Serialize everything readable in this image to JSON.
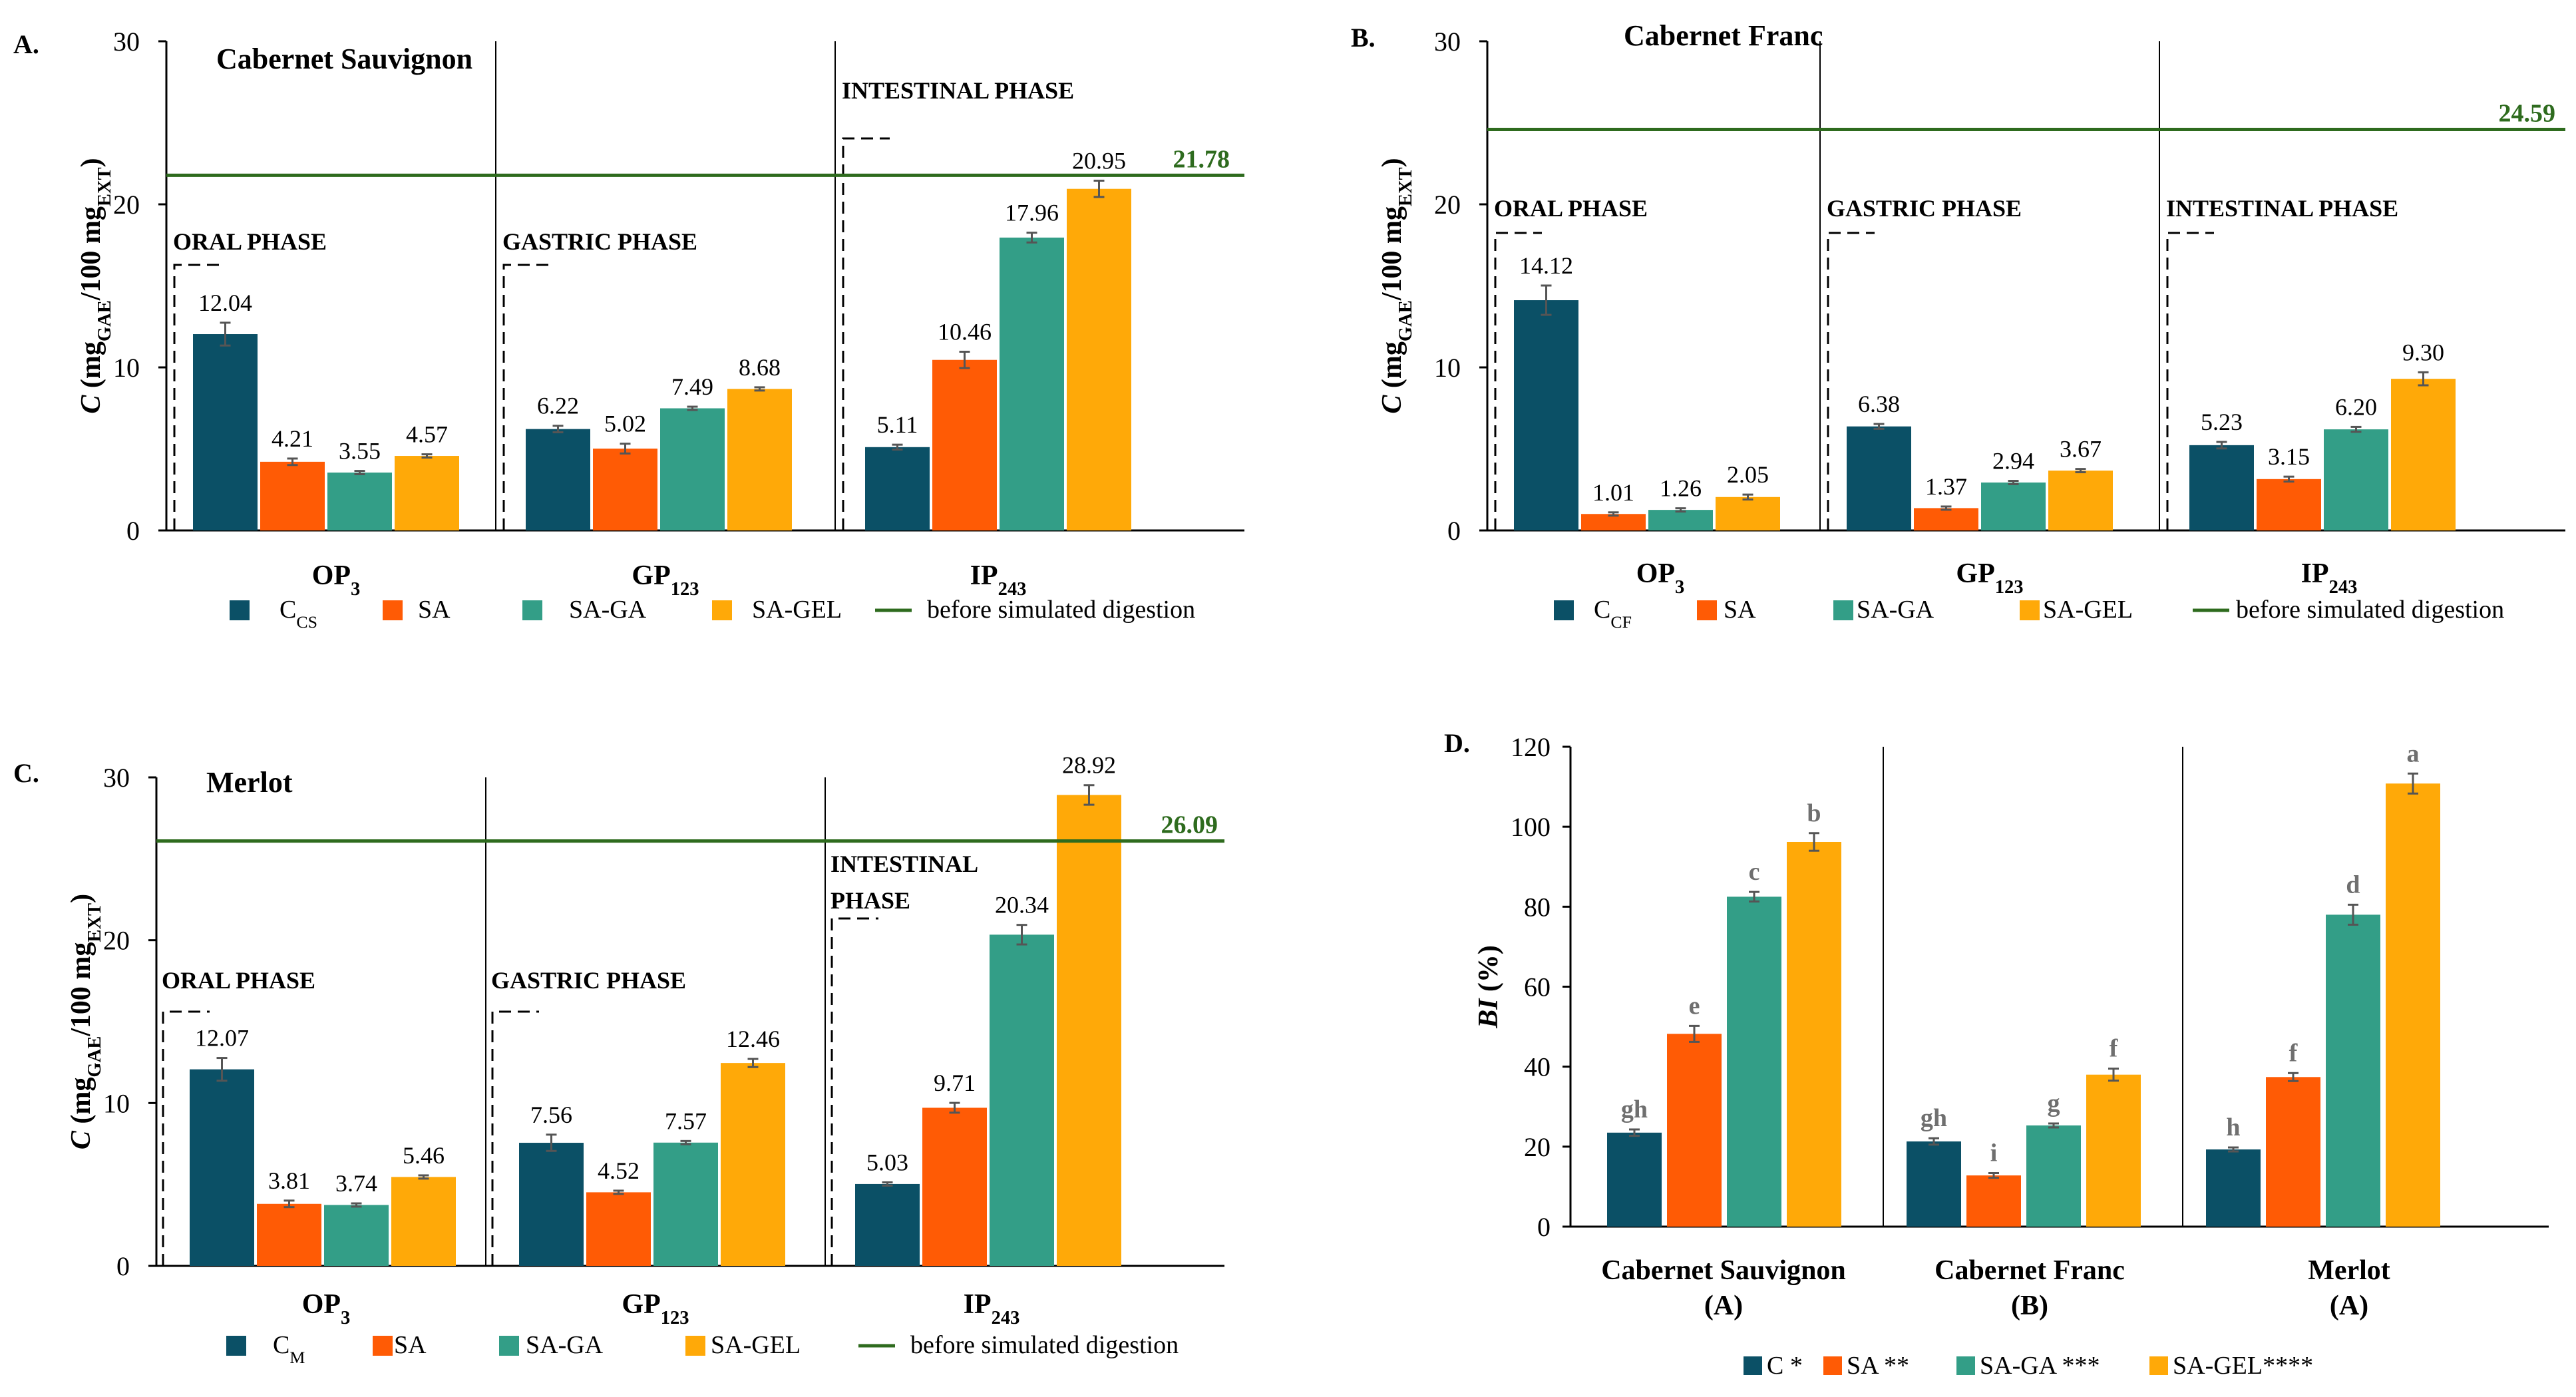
{
  "colors": {
    "teal_dark": "#0b5066",
    "orange": "#ff5b05",
    "teal": "#339e87",
    "yellow": "#ffa908",
    "green_line": "#2e6b1e",
    "error_bar": "#555555",
    "letter_gray": "#6f6f6f"
  },
  "legend_main": {
    "sa": "SA",
    "sa_ga": "SA-GA",
    "sa_gel": "SA-GEL",
    "before": "before simulated digestion"
  },
  "chart_data": [
    {
      "id": "A",
      "panel_label": "A.",
      "type": "bar",
      "title": "Cabernet Sauvignon",
      "ylabel": "C (mgGAE/100 mgEXT)",
      "ylim": [
        0,
        30
      ],
      "yticks": [
        "0",
        "10",
        "20",
        "30"
      ],
      "groups": [
        {
          "label": "OP",
          "sub": "3",
          "phase": "ORAL PHASE",
          "values": [
            12.04,
            4.21,
            3.55,
            4.57
          ],
          "labels": [
            "12.04",
            "4.21",
            "3.55",
            "4.57"
          ],
          "errors": [
            0.7,
            0.2,
            0.1,
            0.1
          ]
        },
        {
          "label": "GP",
          "sub": "123",
          "phase": "GASTRIC PHASE",
          "values": [
            6.22,
            5.02,
            7.49,
            8.68
          ],
          "labels": [
            "6.22",
            "5.02",
            "7.49",
            "8.68"
          ],
          "errors": [
            0.2,
            0.3,
            0.1,
            0.1
          ]
        },
        {
          "label": "IP",
          "sub": "243",
          "phase": "INTESTINAL PHASE",
          "values": [
            5.11,
            10.46,
            17.96,
            20.95
          ],
          "labels": [
            "5.11",
            "10.46",
            "17.96",
            "20.95"
          ],
          "errors": [
            0.15,
            0.5,
            0.3,
            0.5
          ]
        }
      ],
      "reference": 21.78,
      "reference_label": "21.78",
      "legend_c_main": "C",
      "legend_c_sub": "CS"
    },
    {
      "id": "B",
      "panel_label": "B.",
      "type": "bar",
      "title": "Cabernet Franc",
      "ylabel": "C (mgGAE/100 mgEXT)",
      "ylim": [
        0,
        30
      ],
      "yticks": [
        "0",
        "10",
        "20",
        "30"
      ],
      "groups": [
        {
          "label": "OP",
          "sub": "3",
          "phase": "ORAL PHASE",
          "values": [
            14.12,
            1.01,
            1.26,
            2.05
          ],
          "labels": [
            "14.12",
            "1.01",
            "1.26",
            "2.05"
          ],
          "errors": [
            0.9,
            0.1,
            0.1,
            0.15
          ]
        },
        {
          "label": "GP",
          "sub": "123",
          "phase": "GASTRIC PHASE",
          "values": [
            6.38,
            1.37,
            2.94,
            3.67
          ],
          "labels": [
            "6.38",
            "1.37",
            "2.94",
            "3.67"
          ],
          "errors": [
            0.15,
            0.1,
            0.1,
            0.1
          ]
        },
        {
          "label": "IP",
          "sub": "243",
          "phase": "INTESTINAL PHASE",
          "values": [
            5.23,
            3.15,
            6.2,
            9.3
          ],
          "labels": [
            "5.23",
            "3.15",
            "6.20",
            "9.30"
          ],
          "errors": [
            0.2,
            0.15,
            0.15,
            0.4
          ]
        }
      ],
      "reference": 24.59,
      "reference_label": "24.59",
      "legend_c_main": "C",
      "legend_c_sub": "CF"
    },
    {
      "id": "C",
      "panel_label": "C.",
      "type": "bar",
      "title": "Merlot",
      "ylabel": "C (mgGAE/100 mgEXT)",
      "ylim": [
        0,
        30
      ],
      "yticks": [
        "0",
        "10",
        "20",
        "30"
      ],
      "groups": [
        {
          "label": "OP",
          "sub": "3",
          "phase": "ORAL PHASE",
          "values": [
            12.07,
            3.81,
            3.74,
            5.46
          ],
          "labels": [
            "12.07",
            "3.81",
            "3.74",
            "5.46"
          ],
          "errors": [
            0.7,
            0.2,
            0.1,
            0.1
          ]
        },
        {
          "label": "GP",
          "sub": "123",
          "phase": "GASTRIC PHASE",
          "values": [
            7.56,
            4.52,
            7.57,
            12.46
          ],
          "labels": [
            "7.56",
            "4.52",
            "7.57",
            "12.46"
          ],
          "errors": [
            0.5,
            0.1,
            0.1,
            0.25
          ]
        },
        {
          "label": "IP",
          "sub": "243",
          "phase": "INTESTINAL PHASE",
          "values": [
            5.03,
            9.71,
            20.34,
            28.92
          ],
          "labels": [
            "5.03",
            "9.71",
            "20.34",
            "28.92"
          ],
          "errors": [
            0.1,
            0.3,
            0.6,
            0.6
          ]
        }
      ],
      "reference": 26.09,
      "reference_label": "26.09",
      "legend_c_main": "C",
      "legend_c_sub": "M"
    },
    {
      "id": "D",
      "panel_label": "D.",
      "type": "bar",
      "ylabel": "BI (%)",
      "ylim": [
        0,
        120
      ],
      "yticks": [
        "0",
        "20",
        "40",
        "60",
        "80",
        "100",
        "120"
      ],
      "groups": [
        {
          "label": "Cabernet Sauvignon",
          "label2": "(A)",
          "values": [
            23.5,
            48.2,
            82.5,
            96.2
          ],
          "errors": [
            0.8,
            2.0,
            1.2,
            2.2
          ],
          "letters": [
            "gh",
            "e",
            "c",
            "b"
          ]
        },
        {
          "label": "Cabernet Franc",
          "label2": "(B)",
          "values": [
            21.3,
            12.8,
            25.3,
            38.0
          ],
          "errors": [
            0.8,
            0.6,
            0.5,
            1.5
          ],
          "letters": [
            "gh",
            "i",
            "g",
            "f"
          ]
        },
        {
          "label": "Merlot",
          "label2": "(A)",
          "values": [
            19.3,
            37.4,
            78.0,
            110.8
          ],
          "errors": [
            0.5,
            1.0,
            2.5,
            2.5
          ],
          "letters": [
            "h",
            "f",
            "d",
            "a"
          ]
        }
      ],
      "legend": [
        "C *",
        "SA **",
        "SA-GA ***",
        "SA-GEL****"
      ]
    }
  ]
}
